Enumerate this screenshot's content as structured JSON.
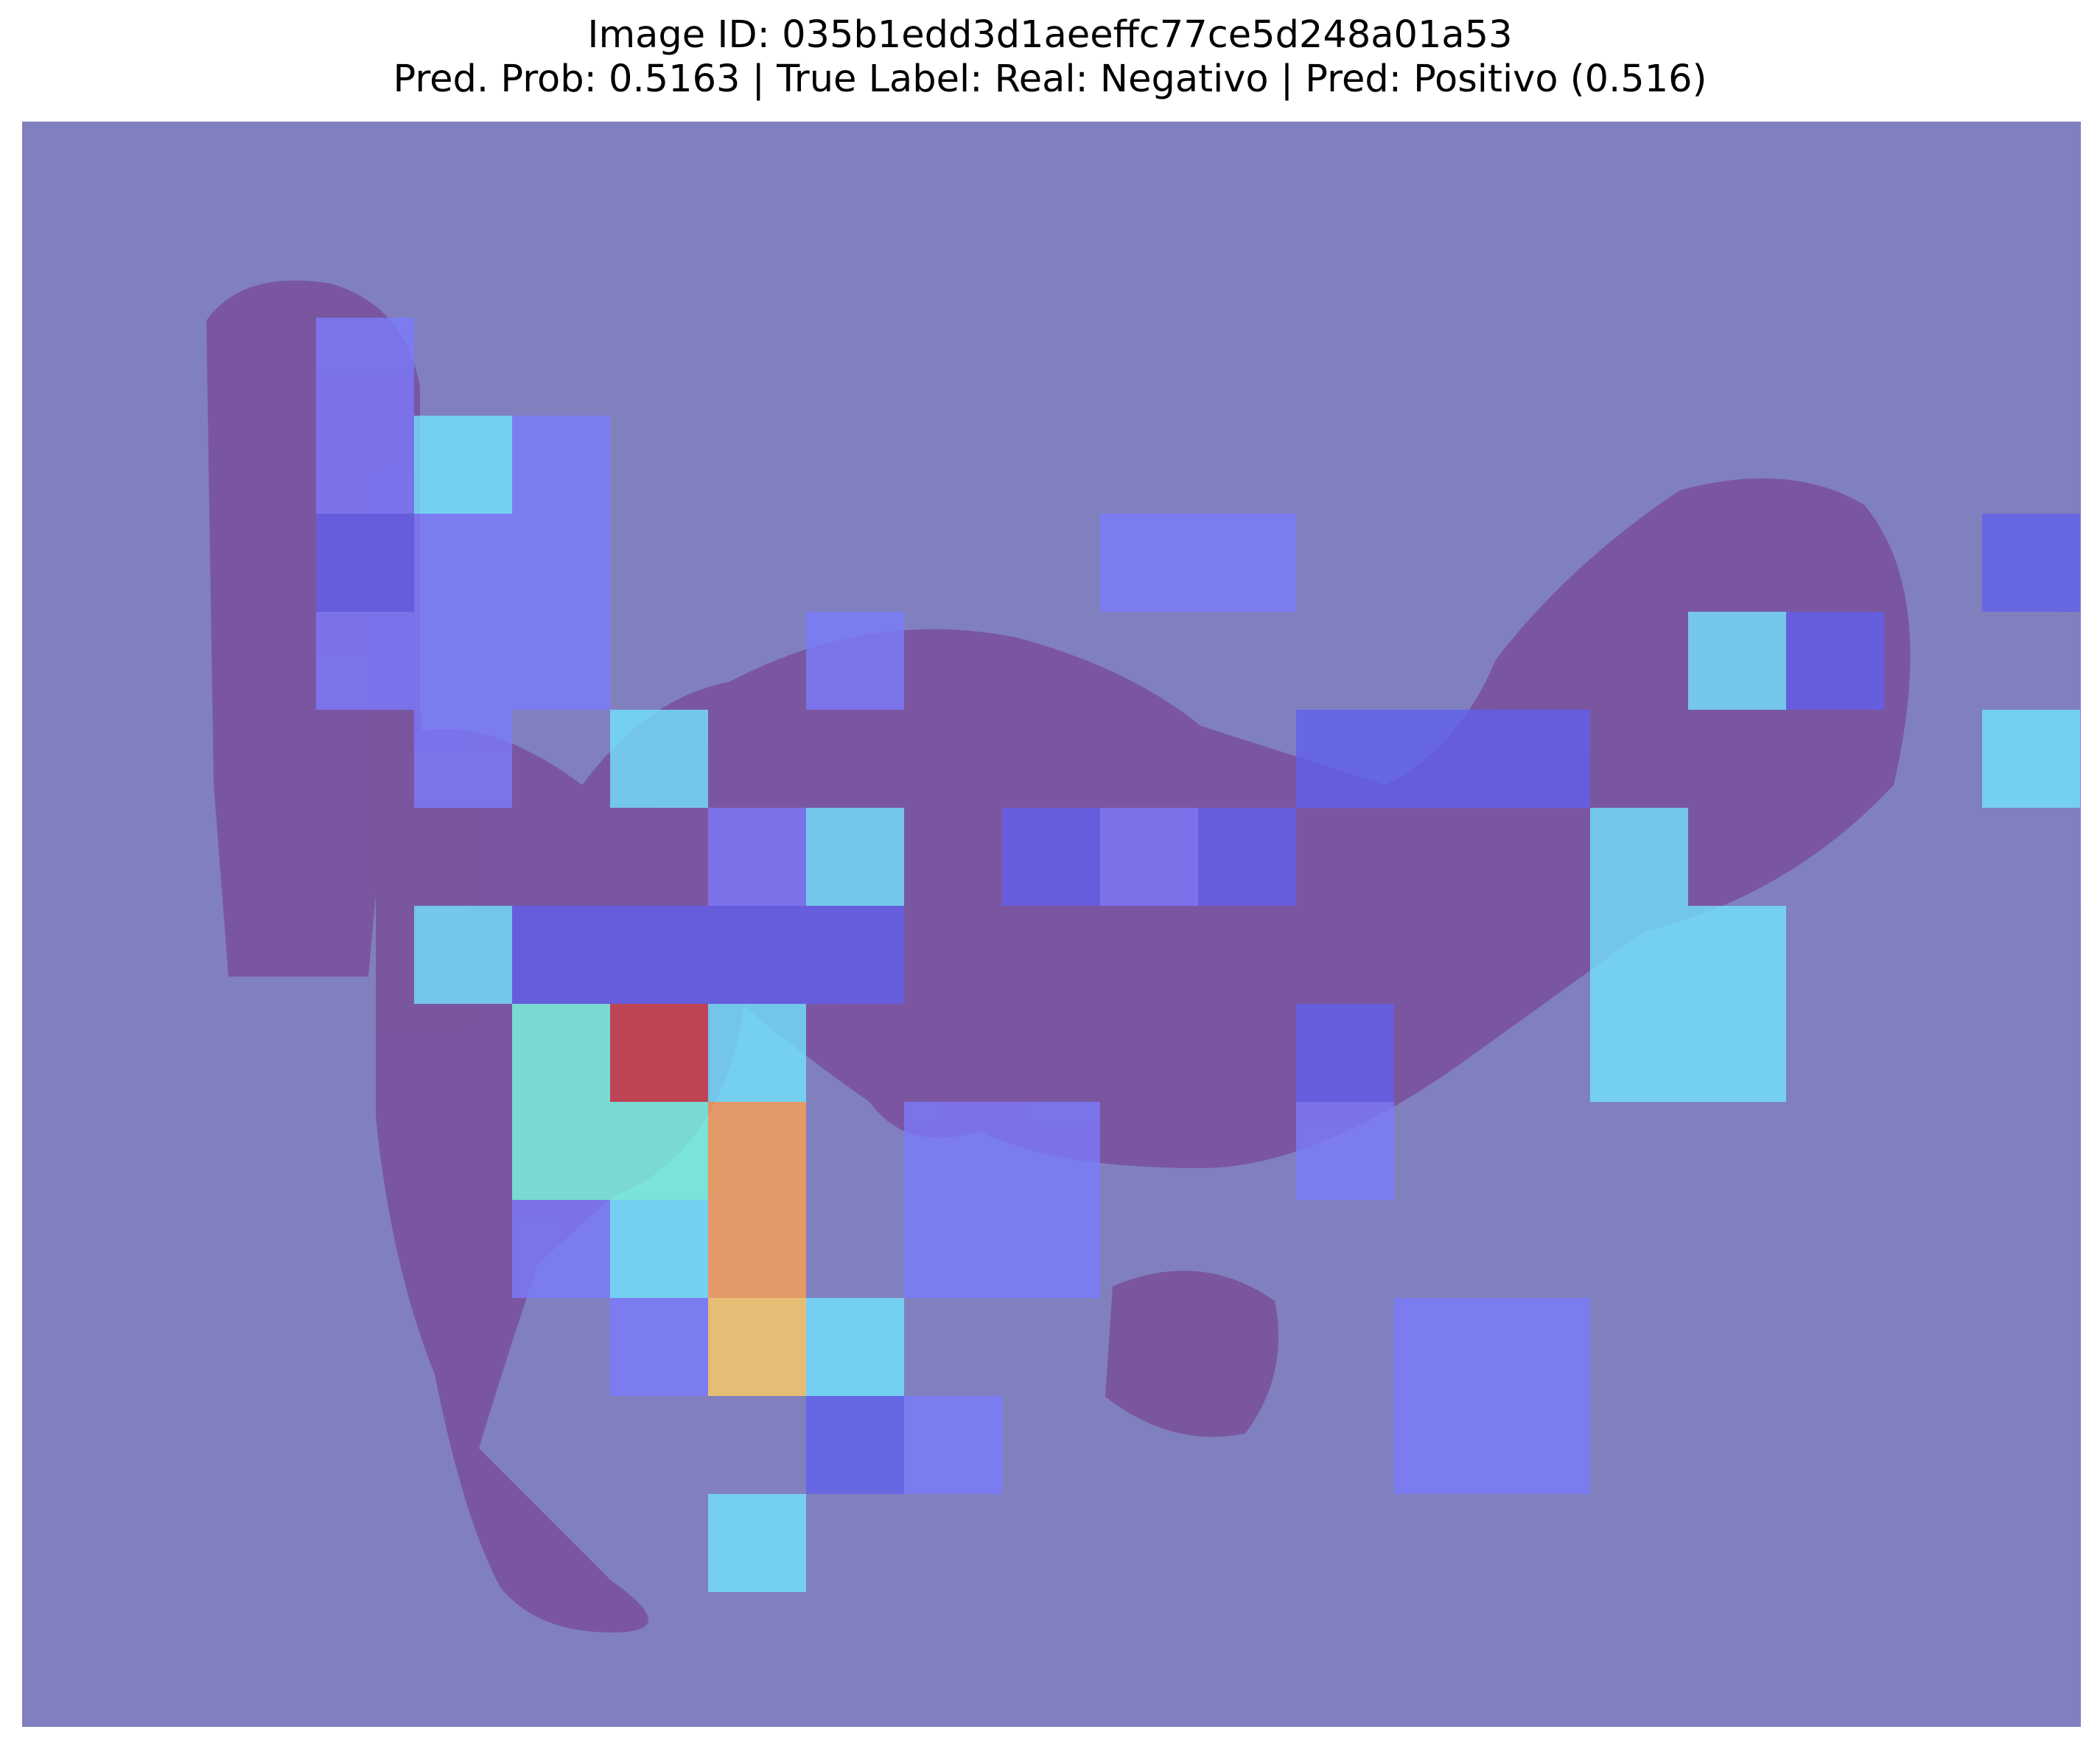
{
  "title": {
    "line1": "Image ID: 035b1edd3d1aeeffc77ce5d248a01a53",
    "line2": "Pred. Prob: 0.5163 | True Label: Real: Negativo | Pred: Positivo (0.516)"
  },
  "figure": {
    "background_color": "#8080bf",
    "tissue_color": "#7a4f9a",
    "colormap": "jet"
  }
}
